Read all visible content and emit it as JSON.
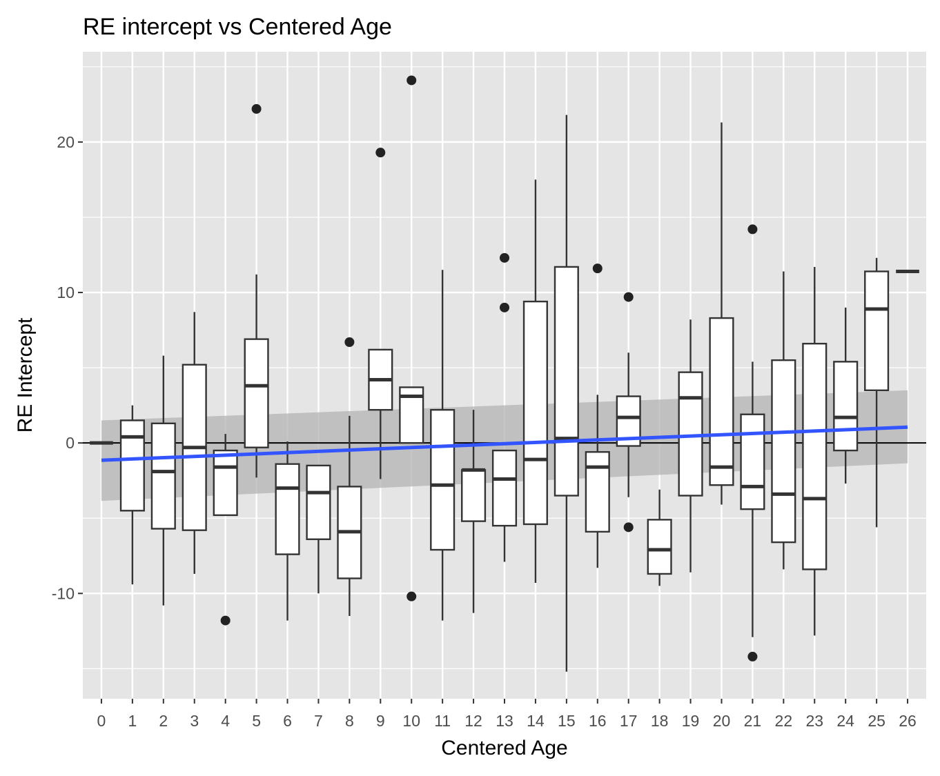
{
  "chart_data": {
    "type": "boxplot",
    "title": "RE intercept vs Centered Age",
    "xlabel": "Centered Age",
    "ylabel": "RE Intercept",
    "categories": [
      "0",
      "1",
      "2",
      "3",
      "4",
      "5",
      "6",
      "7",
      "8",
      "9",
      "10",
      "11",
      "12",
      "13",
      "14",
      "15",
      "16",
      "17",
      "18",
      "19",
      "20",
      "21",
      "22",
      "23",
      "24",
      "25",
      "26"
    ],
    "ylim": [
      -17,
      26
    ],
    "yticks": [
      -10,
      0,
      10,
      20
    ],
    "ytick_labels": [
      "-10",
      "0",
      "10",
      "20"
    ],
    "grid": true,
    "hline": 0,
    "boxes": [
      {
        "x": 0,
        "lower_whisker": 0,
        "q1": 0,
        "median": 0,
        "q3": 0,
        "upper_whisker": 0,
        "outliers": []
      },
      {
        "x": 1,
        "lower_whisker": -9.4,
        "q1": -4.5,
        "median": 0.4,
        "q3": 1.5,
        "upper_whisker": 2.5,
        "outliers": []
      },
      {
        "x": 2,
        "lower_whisker": -10.8,
        "q1": -5.7,
        "median": -1.9,
        "q3": 1.3,
        "upper_whisker": 5.8,
        "outliers": []
      },
      {
        "x": 3,
        "lower_whisker": -8.7,
        "q1": -5.8,
        "median": -0.3,
        "q3": 5.2,
        "upper_whisker": 8.7,
        "outliers": []
      },
      {
        "x": 4,
        "lower_whisker": -4.8,
        "q1": -4.8,
        "median": -1.6,
        "q3": -0.5,
        "upper_whisker": 0.6,
        "outliers": [
          -11.8
        ]
      },
      {
        "x": 5,
        "lower_whisker": -2.3,
        "q1": -0.3,
        "median": 3.8,
        "q3": 6.9,
        "upper_whisker": 11.2,
        "outliers": [
          22.2
        ]
      },
      {
        "x": 6,
        "lower_whisker": -11.8,
        "q1": -7.4,
        "median": -3.0,
        "q3": -1.4,
        "upper_whisker": 0.1,
        "outliers": []
      },
      {
        "x": 7,
        "lower_whisker": -10.0,
        "q1": -6.4,
        "median": -3.3,
        "q3": -1.5,
        "upper_whisker": -1.5,
        "outliers": []
      },
      {
        "x": 8,
        "lower_whisker": -11.5,
        "q1": -9.0,
        "median": -5.9,
        "q3": -2.9,
        "upper_whisker": 1.8,
        "outliers": [
          6.7
        ]
      },
      {
        "x": 9,
        "lower_whisker": -2.4,
        "q1": 2.2,
        "median": 4.2,
        "q3": 6.2,
        "upper_whisker": 6.2,
        "outliers": [
          19.3
        ]
      },
      {
        "x": 10,
        "lower_whisker": 0,
        "q1": 0,
        "median": 3.1,
        "q3": 3.7,
        "upper_whisker": 3.7,
        "outliers": [
          24.1,
          -10.2
        ]
      },
      {
        "x": 11,
        "lower_whisker": -11.8,
        "q1": -7.1,
        "median": -2.8,
        "q3": 2.2,
        "upper_whisker": 11.5,
        "outliers": []
      },
      {
        "x": 12,
        "lower_whisker": -11.3,
        "q1": -5.2,
        "median": -1.8,
        "q3": -1.8,
        "upper_whisker": 2.2,
        "outliers": []
      },
      {
        "x": 13,
        "lower_whisker": -7.9,
        "q1": -5.5,
        "median": -2.4,
        "q3": -0.5,
        "upper_whisker": -0.5,
        "outliers": [
          12.3,
          9.0
        ]
      },
      {
        "x": 14,
        "lower_whisker": -9.3,
        "q1": -5.4,
        "median": -1.1,
        "q3": 9.4,
        "upper_whisker": 17.5,
        "outliers": []
      },
      {
        "x": 15,
        "lower_whisker": -15.2,
        "q1": -3.5,
        "median": 0.3,
        "q3": 11.7,
        "upper_whisker": 21.8,
        "outliers": []
      },
      {
        "x": 16,
        "lower_whisker": -8.3,
        "q1": -5.9,
        "median": -1.6,
        "q3": -0.6,
        "upper_whisker": 3.2,
        "outliers": [
          11.6
        ]
      },
      {
        "x": 17,
        "lower_whisker": -3.6,
        "q1": -0.2,
        "median": 1.7,
        "q3": 3.1,
        "upper_whisker": 6.0,
        "outliers": [
          9.7,
          -5.6
        ]
      },
      {
        "x": 18,
        "lower_whisker": -9.5,
        "q1": -8.7,
        "median": -7.1,
        "q3": -5.1,
        "upper_whisker": -3.1,
        "outliers": []
      },
      {
        "x": 19,
        "lower_whisker": -8.6,
        "q1": -3.5,
        "median": 3.0,
        "q3": 4.7,
        "upper_whisker": 8.2,
        "outliers": []
      },
      {
        "x": 20,
        "lower_whisker": -4.1,
        "q1": -2.8,
        "median": -1.6,
        "q3": 8.3,
        "upper_whisker": 21.3,
        "outliers": []
      },
      {
        "x": 21,
        "lower_whisker": -12.9,
        "q1": -4.4,
        "median": -2.9,
        "q3": 1.9,
        "upper_whisker": 5.4,
        "outliers": [
          14.2,
          -14.2
        ]
      },
      {
        "x": 22,
        "lower_whisker": -8.4,
        "q1": -6.6,
        "median": -3.4,
        "q3": 5.5,
        "upper_whisker": 11.4,
        "outliers": []
      },
      {
        "x": 23,
        "lower_whisker": -12.8,
        "q1": -8.4,
        "median": -3.7,
        "q3": 6.6,
        "upper_whisker": 11.7,
        "outliers": []
      },
      {
        "x": 24,
        "lower_whisker": -2.7,
        "q1": -0.5,
        "median": 1.7,
        "q3": 5.4,
        "upper_whisker": 9.0,
        "outliers": []
      },
      {
        "x": 25,
        "lower_whisker": -5.6,
        "q1": 3.5,
        "median": 8.9,
        "q3": 11.4,
        "upper_whisker": 12.3,
        "outliers": []
      },
      {
        "x": 26,
        "lower_whisker": 11.4,
        "q1": 11.4,
        "median": 11.4,
        "q3": 11.4,
        "upper_whisker": 11.4,
        "outliers": []
      }
    ],
    "trend_line": {
      "type": "linear",
      "x": [
        0,
        26
      ],
      "y": [
        -1.15,
        1.05
      ],
      "ci_lower": [
        -3.85,
        -1.35
      ],
      "ci_upper": [
        1.5,
        3.5
      ],
      "color": "#3355ff"
    },
    "colors": {
      "panel_bg": "#e5e5e5",
      "grid": "#ffffff",
      "box_fill": "#ffffff",
      "box_stroke": "#333333",
      "ci_band": "#b3b3b3",
      "hline": "#000000"
    }
  }
}
